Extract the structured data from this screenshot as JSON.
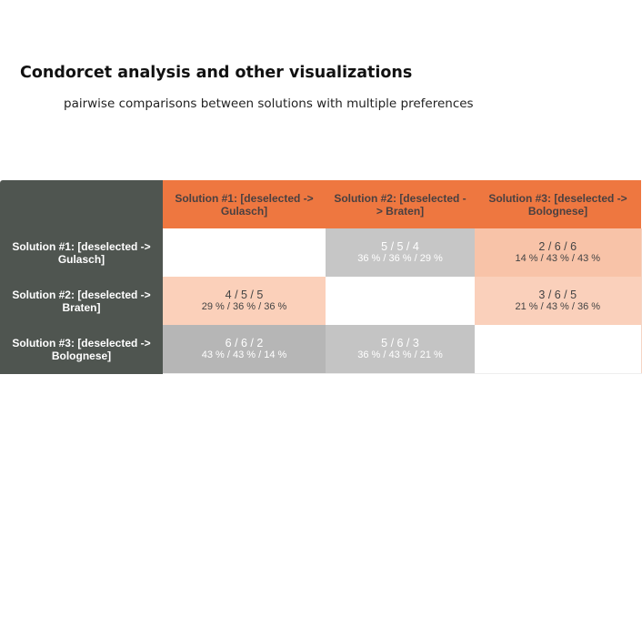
{
  "page": {
    "title": "Condorcet analysis and other visualizations",
    "subtitle": "pairwise comparisons between solutions with multiple preferences"
  },
  "matrix": {
    "columns": [
      {
        "label": "Solution #1: [deselected -> Gulasch]"
      },
      {
        "label": "Solution #2: [deselected -> Braten]"
      },
      {
        "label": "Solution #3: [deselected -> Bolognese]"
      }
    ],
    "rows": [
      {
        "label": "Solution #1: [deselected -> Gulasch]",
        "cells": [
          {
            "counts": "",
            "percents": "",
            "color": "#ffffff",
            "text_color": "#444444"
          },
          {
            "counts": "5 / 5 / 4",
            "percents": "36 % / 36 % / 29 %",
            "color": "#c6c6c6",
            "text_color": "#ffffff"
          },
          {
            "counts": "2 / 6 / 6",
            "percents": "14 % / 43 % / 43 %",
            "color": "#f8c3a8",
            "text_color": "#444444"
          }
        ]
      },
      {
        "label": "Solution #2: [deselected -> Braten]",
        "cells": [
          {
            "counts": "4 / 5 / 5",
            "percents": "29 % / 36 % / 36 %",
            "color": "#fbd0ba",
            "text_color": "#444444"
          },
          {
            "counts": "",
            "percents": "",
            "color": "#ffffff",
            "text_color": "#444444"
          },
          {
            "counts": "3 / 6 / 5",
            "percents": "21 % / 43 % / 36 %",
            "color": "#fad0bb",
            "text_color": "#444444"
          }
        ]
      },
      {
        "label": "Solution #3: [deselected -> Bolognese]",
        "cells": [
          {
            "counts": "6 / 6 / 2",
            "percents": "43 % / 43 % / 14 %",
            "color": "#b6b6b6",
            "text_color": "#ffffff"
          },
          {
            "counts": "5 / 6 / 3",
            "percents": "36 % / 43 % / 21 %",
            "color": "#c4c4c4",
            "text_color": "#ffffff"
          },
          {
            "counts": "",
            "percents": "",
            "color": "#ffffff",
            "text_color": "#444444"
          }
        ]
      }
    ]
  }
}
